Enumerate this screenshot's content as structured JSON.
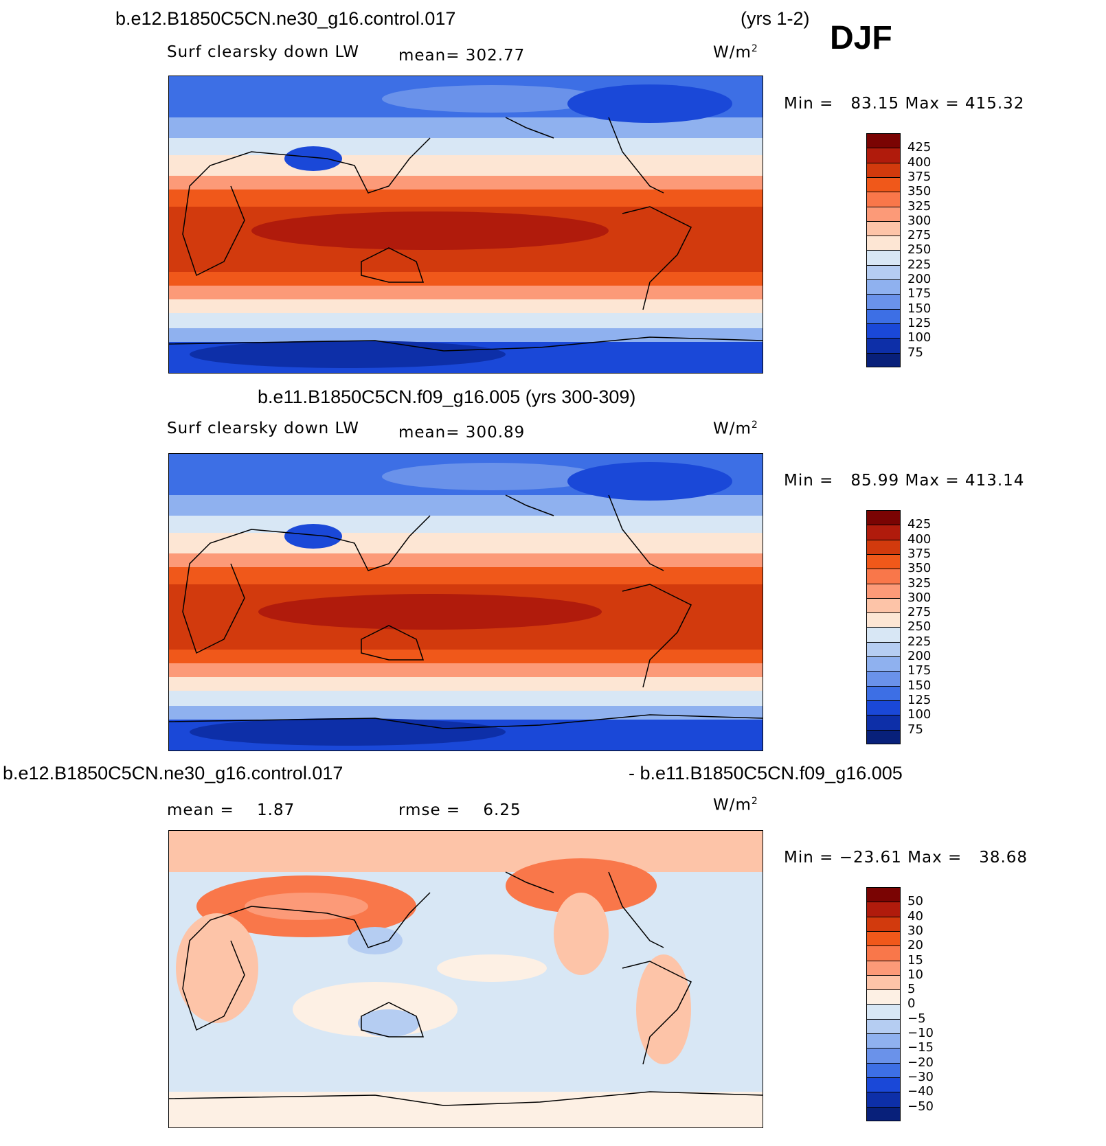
{
  "header": {
    "case_title": "b.e12.B1850C5CN.ne30_g16.control.017",
    "years": "(yrs 1-2)",
    "season": "DJF"
  },
  "panels": [
    {
      "title": "",
      "variable": "Surf clearsky down LW",
      "mean_text": "mean= 302.77",
      "units_base": "W/m",
      "units_exp": "2",
      "minmax_text": "Min =   83.15 Max = 415.32",
      "colorbar_labels": [
        "425",
        "400",
        "375",
        "350",
        "325",
        "300",
        "275",
        "250",
        "225",
        "200",
        "175",
        "150",
        "125",
        "100",
        "75"
      ],
      "colors": [
        "#7a0403",
        "#b01b0c",
        "#d23a0d",
        "#f0581a",
        "#f9774a",
        "#fc9a78",
        "#fdc4a8",
        "#fde6d4",
        "#d8e7f5",
        "#b5cdf2",
        "#8fb1ef",
        "#6a92ea",
        "#3d6fe5",
        "#1a48d8",
        "#0d2fa8",
        "#08207a"
      ]
    },
    {
      "title": "b.e11.B1850C5CN.f09_g16.005 (yrs 300-309)",
      "variable": "Surf clearsky down LW",
      "mean_text": "mean= 300.89",
      "units_base": "W/m",
      "units_exp": "2",
      "minmax_text": "Min =   85.99 Max = 413.14",
      "colorbar_labels": [
        "425",
        "400",
        "375",
        "350",
        "325",
        "300",
        "275",
        "250",
        "225",
        "200",
        "175",
        "150",
        "125",
        "100",
        "75"
      ],
      "colors": [
        "#7a0403",
        "#b01b0c",
        "#d23a0d",
        "#f0581a",
        "#f9774a",
        "#fc9a78",
        "#fdc4a8",
        "#fde6d4",
        "#d8e7f5",
        "#b5cdf2",
        "#8fb1ef",
        "#6a92ea",
        "#3d6fe5",
        "#1a48d8",
        "#0d2fa8",
        "#08207a"
      ]
    },
    {
      "title_left": "b.e12.B1850C5CN.ne30_g16.control.017",
      "title_right": "- b.e11.B1850C5CN.f09_g16.005",
      "mean_text": "mean =    1.87",
      "rmse_text": "rmse =    6.25",
      "units_base": "W/m",
      "units_exp": "2",
      "minmax_text": "Min = −23.61 Max =   38.68",
      "colorbar_labels": [
        "50",
        "40",
        "30",
        "20",
        "15",
        "10",
        "5",
        "0",
        "−5",
        "−10",
        "−15",
        "−20",
        "−30",
        "−40",
        "−50"
      ],
      "colors": [
        "#7a0403",
        "#b01b0c",
        "#d23a0d",
        "#f0581a",
        "#f9774a",
        "#fc9a78",
        "#fdc4a8",
        "#fdf0e4",
        "#d8e7f5",
        "#b5cdf2",
        "#8fb1ef",
        "#6a92ea",
        "#3d6fe5",
        "#1a48d8",
        "#0d2fa8",
        "#08207a"
      ]
    }
  ]
}
